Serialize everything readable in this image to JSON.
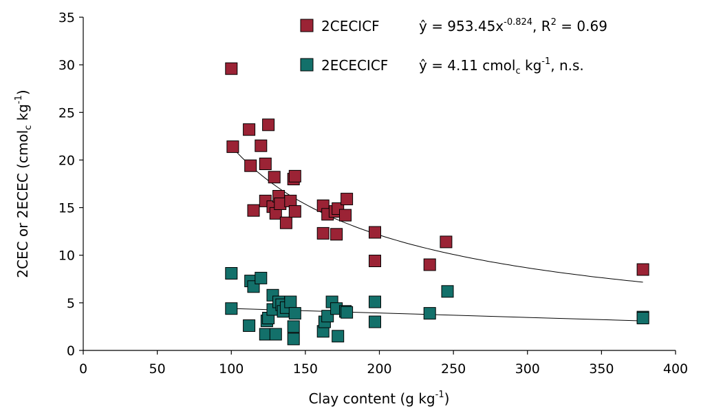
{
  "chart_data": {
    "type": "scatter",
    "xlim": [
      0,
      400
    ],
    "ylim": [
      0,
      35
    ],
    "x_ticks": [
      "0",
      "50",
      "100",
      "150",
      "200",
      "250",
      "300",
      "350",
      "400"
    ],
    "y_ticks": [
      "0",
      "5",
      "10",
      "15",
      "20",
      "25",
      "30",
      "35"
    ],
    "xlabel": {
      "main": "Clay content (g kg",
      "sup": "-1",
      "end": ")"
    },
    "ylabel": {
      "p1": "2CEC or 2ECEC (cmol",
      "sub": "c",
      "p2": " kg",
      "sup": "-1",
      "p3": ")"
    },
    "grid": false,
    "legend_position": "top-right",
    "series": [
      {
        "name": "2CECICF",
        "color": "#9b2335",
        "marker": "square",
        "equation": {
          "a": "ŷ = 953.45x",
          "sup1": "-0.824",
          "b": ", R",
          "sup2": "2",
          "c": " = 0.69"
        },
        "fit": {
          "type": "power",
          "a": 953.45,
          "b": -0.824,
          "x_range": [
            100,
            378
          ]
        },
        "points": [
          [
            100,
            29.6
          ],
          [
            101,
            21.4
          ],
          [
            112,
            23.2
          ],
          [
            113,
            19.4
          ],
          [
            115,
            14.7
          ],
          [
            120,
            21.5
          ],
          [
            123,
            19.6
          ],
          [
            123,
            15.7
          ],
          [
            125,
            23.7
          ],
          [
            128,
            15.1
          ],
          [
            129,
            18.2
          ],
          [
            130,
            14.4
          ],
          [
            132,
            16.2
          ],
          [
            133,
            15.4
          ],
          [
            137,
            13.4
          ],
          [
            140,
            15.7
          ],
          [
            142,
            18.0
          ],
          [
            143,
            18.3
          ],
          [
            143,
            14.6
          ],
          [
            162,
            15.2
          ],
          [
            162,
            12.3
          ],
          [
            165,
            14.3
          ],
          [
            170,
            14.6
          ],
          [
            171,
            12.2
          ],
          [
            172,
            14.9
          ],
          [
            177,
            14.2
          ],
          [
            178,
            15.9
          ],
          [
            197,
            12.4
          ],
          [
            197,
            9.4
          ],
          [
            234,
            9.0
          ],
          [
            245,
            11.4
          ],
          [
            378,
            8.5
          ]
        ]
      },
      {
        "name": "2ECECICF",
        "color": "#13706a",
        "marker": "square",
        "equation": {
          "a": "ŷ = 4.11 cmol",
          "sub": "c",
          "b": " kg",
          "sup": "-1",
          "c": ", n.s."
        },
        "fit": {
          "type": "linear",
          "x_range": [
            100,
            378
          ],
          "y_range": [
            4.4,
            3.1
          ]
        },
        "points": [
          [
            100,
            8.1
          ],
          [
            100,
            4.4
          ],
          [
            112,
            2.6
          ],
          [
            113,
            7.3
          ],
          [
            115,
            6.7
          ],
          [
            120,
            7.6
          ],
          [
            123,
            1.7
          ],
          [
            124,
            3.1
          ],
          [
            125,
            3.4
          ],
          [
            128,
            5.8
          ],
          [
            128,
            4.3
          ],
          [
            130,
            1.7
          ],
          [
            132,
            5.1
          ],
          [
            134,
            4.8
          ],
          [
            135,
            4.1
          ],
          [
            137,
            4.5
          ],
          [
            140,
            5.1
          ],
          [
            142,
            1.2
          ],
          [
            142,
            2.5
          ],
          [
            143,
            3.9
          ],
          [
            162,
            2.0
          ],
          [
            163,
            3.0
          ],
          [
            165,
            3.6
          ],
          [
            168,
            5.1
          ],
          [
            171,
            4.4
          ],
          [
            172,
            1.5
          ],
          [
            177,
            4.1
          ],
          [
            178,
            4.0
          ],
          [
            197,
            5.1
          ],
          [
            197,
            3.0
          ],
          [
            234,
            3.9
          ],
          [
            246,
            6.2
          ],
          [
            378,
            3.5
          ],
          [
            378,
            3.4
          ]
        ]
      }
    ]
  }
}
